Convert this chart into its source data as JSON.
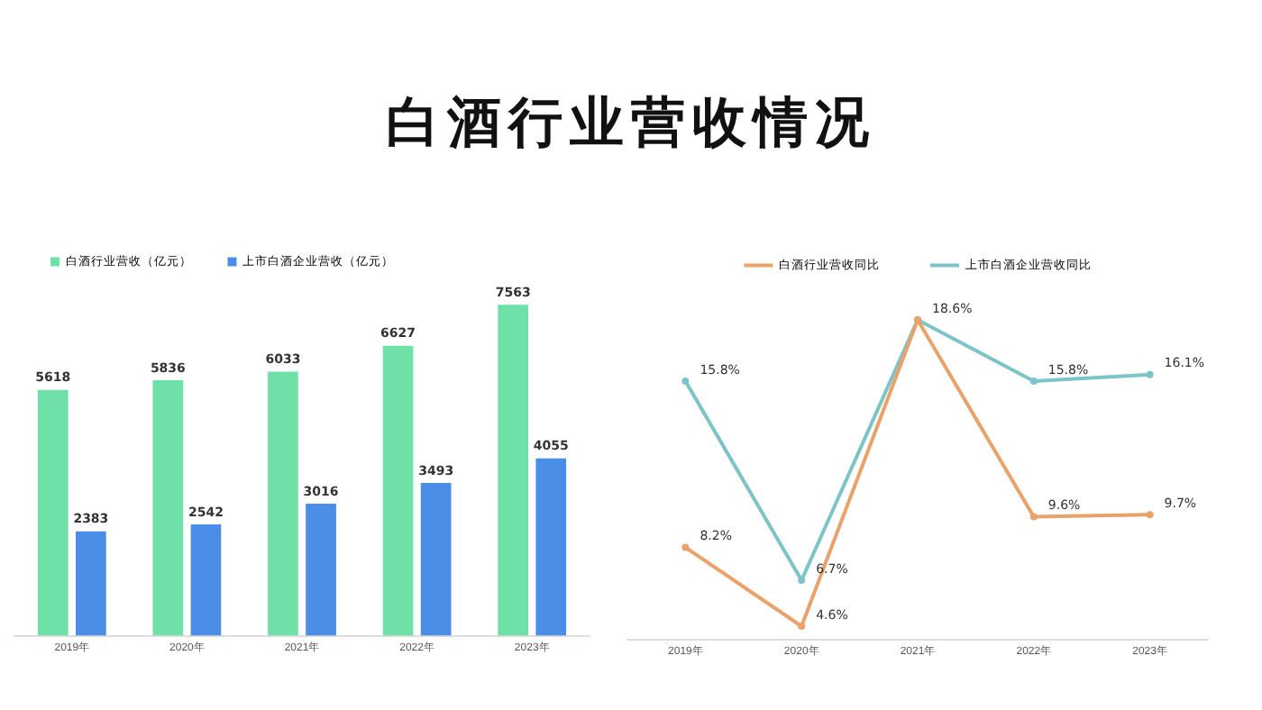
{
  "chart_data": [
    {
      "type": "bar",
      "title": "白酒行业营收情况",
      "categories": [
        "2019年",
        "2020年",
        "2021年",
        "2022年",
        "2023年"
      ],
      "series": [
        {
          "name": "白酒行业营收（亿元）",
          "color": "#6ee0a8",
          "values": [
            5618,
            5836,
            6033,
            6627,
            7563
          ],
          "value_labels": [
            "5618",
            "5836",
            "6033",
            "6627",
            "7563"
          ]
        },
        {
          "name": "上市白酒企业营收（亿元）",
          "color": "#4a8ee8",
          "values": [
            2383,
            2542,
            3016,
            3493,
            4055
          ],
          "value_labels": [
            "2383",
            "2542",
            "3016",
            "3493",
            "4055"
          ]
        }
      ],
      "legend": "top left",
      "grid": false
    },
    {
      "type": "line",
      "categories": [
        "2019年",
        "2020年",
        "2021年",
        "2022年",
        "2023年"
      ],
      "series": [
        {
          "name": "白酒行业营收同比",
          "color": "#e8a26a",
          "values": [
            8.2,
            4.6,
            18.6,
            9.6,
            9.7
          ],
          "value_labels": [
            "8.2%",
            "4.6%",
            null,
            "9.6%",
            "9.7%"
          ]
        },
        {
          "name": "上市白酒企业营收同比",
          "color": "#7cc4c8",
          "values": [
            15.8,
            6.7,
            18.6,
            15.8,
            16.1
          ],
          "value_labels": [
            "15.8%",
            "6.7%",
            "18.6%",
            "15.8%",
            "16.1%"
          ]
        }
      ],
      "legend": "top",
      "grid": false,
      "marker": "circle"
    }
  ]
}
